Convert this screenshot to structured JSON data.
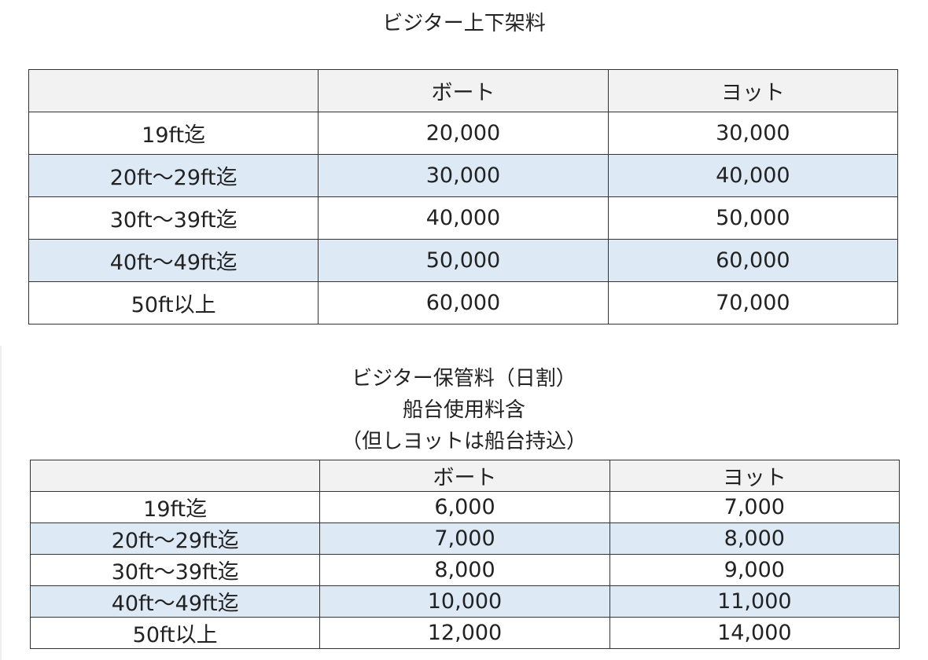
{
  "title1": "ビジター上下架料",
  "table1": {
    "headers": [
      "",
      "ボート",
      "ヨット"
    ],
    "rows": [
      [
        "19ft迄",
        "20,000",
        "30,000"
      ],
      [
        "20ft～29ft迄",
        "30,000",
        "40,000"
      ],
      [
        "30ft～39ft迄",
        "40,000",
        "50,000"
      ],
      [
        "40ft～49ft迄",
        "50,000",
        "60,000"
      ],
      [
        "50ft以上",
        "60,000",
        "70,000"
      ]
    ]
  },
  "title2": {
    "line1": "ビジター保管料（日割）",
    "line2": "船台使用料含",
    "line3": "（但しヨットは船台持込）"
  },
  "table2": {
    "headers": [
      "",
      "ボート",
      "ヨット"
    ],
    "rows": [
      [
        "19ft迄",
        "6,000",
        "7,000"
      ],
      [
        "20ft～29ft迄",
        "7,000",
        "8,000"
      ],
      [
        "30ft～39ft迄",
        "8,000",
        "9,000"
      ],
      [
        "40ft～49ft迄",
        "10,000",
        "11,000"
      ],
      [
        "50ft以上",
        "12,000",
        "14,000"
      ]
    ]
  },
  "colors": {
    "header_bg": "#f2f2f2",
    "shaded_row_bg": "#dde9f5",
    "border": "#333333"
  }
}
